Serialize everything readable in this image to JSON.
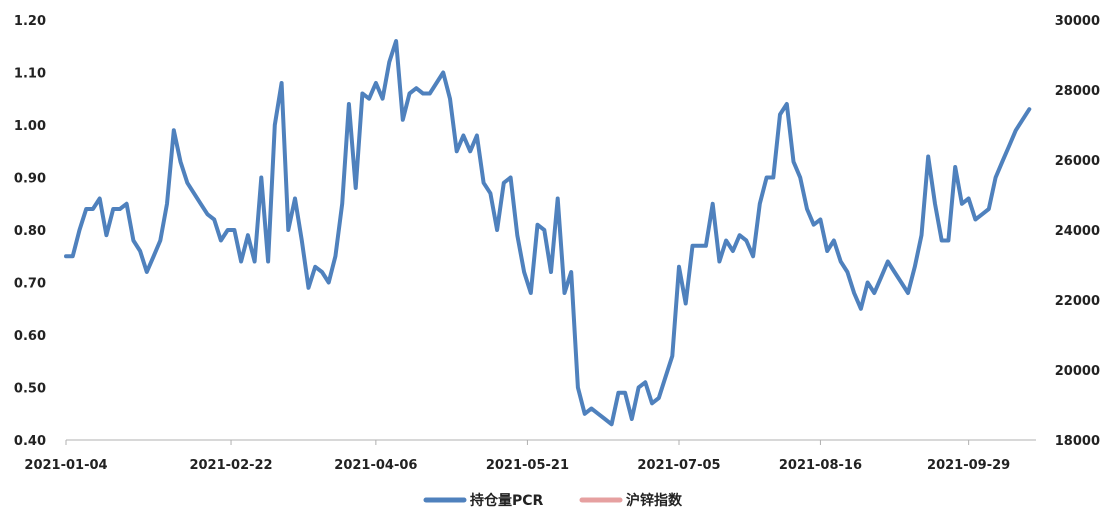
{
  "chart_data": {
    "type": "line",
    "x_ticks": [
      "2021-01-04",
      "2021-02-22",
      "2021-04-06",
      "2021-05-21",
      "2021-07-05",
      "2021-08-16",
      "2021-09-29"
    ],
    "x_range": [
      "2021-01-04",
      "2021-10-19"
    ],
    "y_left": {
      "range": [
        0.4,
        1.2
      ],
      "ticks": [
        "0.40",
        "0.50",
        "0.60",
        "0.70",
        "0.80",
        "0.90",
        "1.00",
        "1.10",
        "1.20"
      ]
    },
    "y_right": {
      "range": [
        18000,
        30000
      ],
      "ticks": [
        "18000",
        "20000",
        "22000",
        "24000",
        "26000",
        "28000",
        "30000"
      ]
    },
    "grid": false,
    "legend_position": "bottom",
    "series": [
      {
        "name": "持仓量PCR",
        "axis": "left",
        "color": "#4f81bd",
        "points": [
          [
            "2021-01-04",
            0.75
          ],
          [
            "2021-01-06",
            0.75
          ],
          [
            "2021-01-08",
            0.8
          ],
          [
            "2021-01-10",
            0.84
          ],
          [
            "2021-01-12",
            0.84
          ],
          [
            "2021-01-14",
            0.86
          ],
          [
            "2021-01-16",
            0.79
          ],
          [
            "2021-01-18",
            0.84
          ],
          [
            "2021-01-20",
            0.84
          ],
          [
            "2021-01-22",
            0.85
          ],
          [
            "2021-01-24",
            0.78
          ],
          [
            "2021-01-26",
            0.76
          ],
          [
            "2021-01-28",
            0.72
          ],
          [
            "2021-01-30",
            0.75
          ],
          [
            "2021-02-01",
            0.78
          ],
          [
            "2021-02-03",
            0.85
          ],
          [
            "2021-02-05",
            0.99
          ],
          [
            "2021-02-07",
            0.93
          ],
          [
            "2021-02-09",
            0.89
          ],
          [
            "2021-02-11",
            0.87
          ],
          [
            "2021-02-13",
            0.85
          ],
          [
            "2021-02-15",
            0.83
          ],
          [
            "2021-02-17",
            0.82
          ],
          [
            "2021-02-19",
            0.78
          ],
          [
            "2021-02-21",
            0.8
          ],
          [
            "2021-02-23",
            0.8
          ],
          [
            "2021-02-25",
            0.74
          ],
          [
            "2021-02-27",
            0.79
          ],
          [
            "2021-03-01",
            0.74
          ],
          [
            "2021-03-03",
            0.9
          ],
          [
            "2021-03-05",
            0.74
          ],
          [
            "2021-03-07",
            1.0
          ],
          [
            "2021-03-09",
            1.08
          ],
          [
            "2021-03-11",
            0.8
          ],
          [
            "2021-03-13",
            0.86
          ],
          [
            "2021-03-15",
            0.78
          ],
          [
            "2021-03-17",
            0.69
          ],
          [
            "2021-03-19",
            0.73
          ],
          [
            "2021-03-21",
            0.72
          ],
          [
            "2021-03-23",
            0.7
          ],
          [
            "2021-03-25",
            0.75
          ],
          [
            "2021-03-27",
            0.85
          ],
          [
            "2021-03-29",
            1.04
          ],
          [
            "2021-03-31",
            0.88
          ],
          [
            "2021-04-02",
            1.06
          ],
          [
            "2021-04-04",
            1.05
          ],
          [
            "2021-04-06",
            1.08
          ],
          [
            "2021-04-08",
            1.05
          ],
          [
            "2021-04-10",
            1.12
          ],
          [
            "2021-04-12",
            1.16
          ],
          [
            "2021-04-14",
            1.01
          ],
          [
            "2021-04-16",
            1.06
          ],
          [
            "2021-04-18",
            1.07
          ],
          [
            "2021-04-20",
            1.06
          ],
          [
            "2021-04-22",
            1.06
          ],
          [
            "2021-04-24",
            1.08
          ],
          [
            "2021-04-26",
            1.1
          ],
          [
            "2021-04-28",
            1.05
          ],
          [
            "2021-04-30",
            0.95
          ],
          [
            "2021-05-02",
            0.98
          ],
          [
            "2021-05-04",
            0.95
          ],
          [
            "2021-05-06",
            0.98
          ],
          [
            "2021-05-08",
            0.89
          ],
          [
            "2021-05-10",
            0.87
          ],
          [
            "2021-05-12",
            0.8
          ],
          [
            "2021-05-14",
            0.89
          ],
          [
            "2021-05-16",
            0.9
          ],
          [
            "2021-05-18",
            0.79
          ],
          [
            "2021-05-20",
            0.72
          ],
          [
            "2021-05-22",
            0.68
          ],
          [
            "2021-05-24",
            0.81
          ],
          [
            "2021-05-26",
            0.8
          ],
          [
            "2021-05-28",
            0.72
          ],
          [
            "2021-05-30",
            0.86
          ],
          [
            "2021-06-01",
            0.68
          ],
          [
            "2021-06-03",
            0.72
          ],
          [
            "2021-06-05",
            0.5
          ],
          [
            "2021-06-07",
            0.45
          ],
          [
            "2021-06-09",
            0.46
          ],
          [
            "2021-06-11",
            0.45
          ],
          [
            "2021-06-13",
            0.44
          ],
          [
            "2021-06-15",
            0.43
          ],
          [
            "2021-06-17",
            0.49
          ],
          [
            "2021-06-19",
            0.49
          ],
          [
            "2021-06-21",
            0.44
          ],
          [
            "2021-06-23",
            0.5
          ],
          [
            "2021-06-25",
            0.51
          ],
          [
            "2021-06-27",
            0.47
          ],
          [
            "2021-06-29",
            0.48
          ],
          [
            "2021-07-01",
            0.52
          ],
          [
            "2021-07-03",
            0.56
          ],
          [
            "2021-07-05",
            0.73
          ],
          [
            "2021-07-07",
            0.66
          ],
          [
            "2021-07-09",
            0.77
          ],
          [
            "2021-07-11",
            0.77
          ],
          [
            "2021-07-13",
            0.77
          ],
          [
            "2021-07-15",
            0.85
          ],
          [
            "2021-07-17",
            0.74
          ],
          [
            "2021-07-19",
            0.78
          ],
          [
            "2021-07-21",
            0.76
          ],
          [
            "2021-07-23",
            0.79
          ],
          [
            "2021-07-25",
            0.78
          ],
          [
            "2021-07-27",
            0.75
          ],
          [
            "2021-07-29",
            0.85
          ],
          [
            "2021-07-31",
            0.9
          ],
          [
            "2021-08-02",
            0.9
          ],
          [
            "2021-08-04",
            1.02
          ],
          [
            "2021-08-06",
            1.04
          ],
          [
            "2021-08-08",
            0.93
          ],
          [
            "2021-08-10",
            0.9
          ],
          [
            "2021-08-12",
            0.84
          ],
          [
            "2021-08-14",
            0.81
          ],
          [
            "2021-08-16",
            0.82
          ],
          [
            "2021-08-18",
            0.76
          ],
          [
            "2021-08-20",
            0.78
          ],
          [
            "2021-08-22",
            0.74
          ],
          [
            "2021-08-24",
            0.72
          ],
          [
            "2021-08-26",
            0.68
          ],
          [
            "2021-08-28",
            0.65
          ],
          [
            "2021-08-30",
            0.7
          ],
          [
            "2021-09-01",
            0.68
          ],
          [
            "2021-09-03",
            0.71
          ],
          [
            "2021-09-05",
            0.74
          ],
          [
            "2021-09-07",
            0.72
          ],
          [
            "2021-09-09",
            0.7
          ],
          [
            "2021-09-11",
            0.68
          ],
          [
            "2021-09-13",
            0.73
          ],
          [
            "2021-09-15",
            0.79
          ],
          [
            "2021-09-17",
            0.94
          ],
          [
            "2021-09-19",
            0.85
          ],
          [
            "2021-09-21",
            0.78
          ],
          [
            "2021-09-23",
            0.78
          ],
          [
            "2021-09-25",
            0.92
          ],
          [
            "2021-09-27",
            0.85
          ],
          [
            "2021-09-29",
            0.86
          ],
          [
            "2021-10-01",
            0.82
          ],
          [
            "2021-10-03",
            0.83
          ],
          [
            "2021-10-05",
            0.84
          ],
          [
            "2021-10-07",
            0.9
          ],
          [
            "2021-10-09",
            0.93
          ],
          [
            "2021-10-11",
            0.96
          ],
          [
            "2021-10-13",
            0.99
          ],
          [
            "2021-10-15",
            1.01
          ],
          [
            "2021-10-17",
            1.03
          ]
        ]
      },
      {
        "name": "沪锌指数",
        "axis": "right",
        "color": "#e6a0a0",
        "points": []
      }
    ]
  }
}
